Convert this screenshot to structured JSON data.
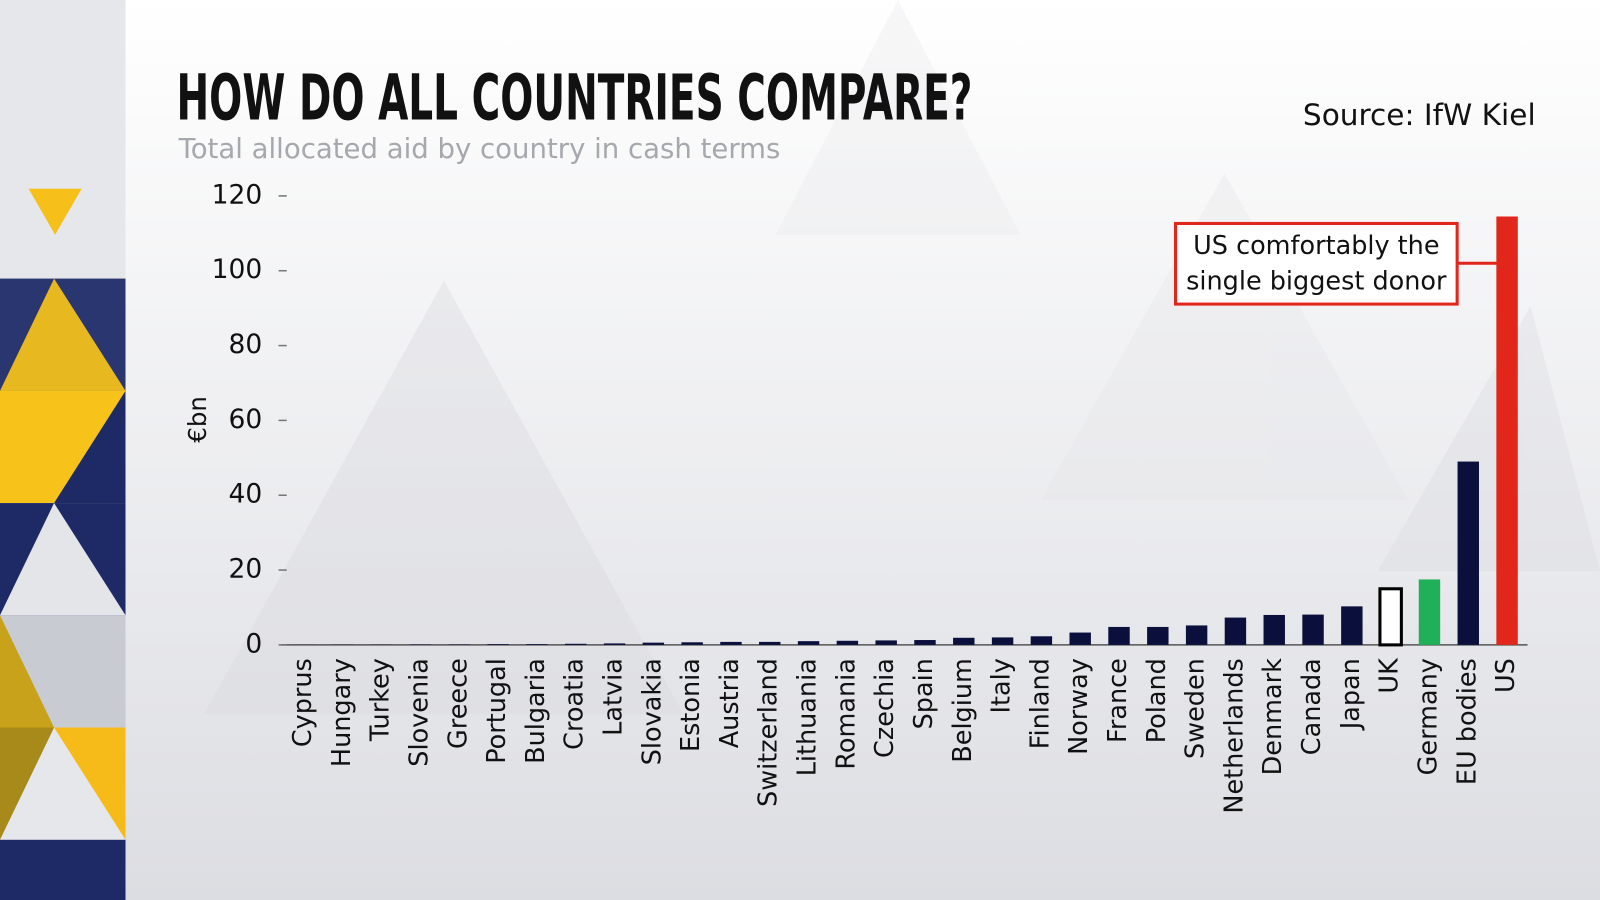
{
  "chart_data": {
    "type": "bar",
    "title": "HOW DO ALL COUNTRIES COMPARE?",
    "subtitle": "Total allocated aid by country in cash terms",
    "source": "Source: IfW Kiel",
    "y_label": "€bn",
    "annotation": [
      "US comfortably the",
      "single biggest donor"
    ],
    "categories": [
      "Cyprus",
      "Hungary",
      "Turkey",
      "Slovenia",
      "Greece",
      "Portugal",
      "Bulgaria",
      "Croatia",
      "Latvia",
      "Slovakia",
      "Estonia",
      "Austria",
      "Switzerland",
      "Lithuania",
      "Romania",
      "Czechia",
      "Spain",
      "Belgium",
      "Italy",
      "Finland",
      "Norway",
      "France",
      "Poland",
      "Sweden",
      "Netherlands",
      "Denmark",
      "Canada",
      "Japan",
      "UK",
      "Germany",
      "EU bodies",
      "US"
    ],
    "values": [
      0.02,
      0.05,
      0.05,
      0.1,
      0.1,
      0.2,
      0.2,
      0.3,
      0.4,
      0.6,
      0.7,
      0.8,
      0.8,
      1.0,
      1.1,
      1.2,
      1.3,
      1.9,
      2.0,
      2.3,
      3.3,
      4.8,
      4.8,
      5.2,
      7.3,
      8.0,
      8.1,
      10.3,
      15,
      17.5,
      49,
      114.5
    ],
    "colors": [
      "#0a0f3c",
      "#0a0f3c",
      "#0a0f3c",
      "#0a0f3c",
      "#0a0f3c",
      "#0a0f3c",
      "#0a0f3c",
      "#0a0f3c",
      "#0a0f3c",
      "#0a0f3c",
      "#0a0f3c",
      "#0a0f3c",
      "#0a0f3c",
      "#0a0f3c",
      "#0a0f3c",
      "#0a0f3c",
      "#0a0f3c",
      "#0a0f3c",
      "#0a0f3c",
      "#0a0f3c",
      "#0a0f3c",
      "#0a0f3c",
      "#0a0f3c",
      "#0a0f3c",
      "#0a0f3c",
      "#0a0f3c",
      "#0a0f3c",
      "#0a0f3c",
      "#ffffff",
      "#21b05a",
      "#0a0f3c",
      "#e1261c"
    ],
    "ylim": [
      0,
      120
    ],
    "yticks": [
      0,
      20,
      40,
      60,
      80,
      100,
      120
    ]
  }
}
